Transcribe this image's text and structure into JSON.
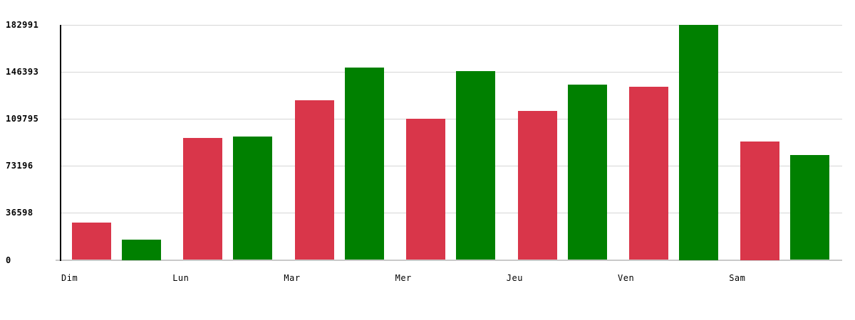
{
  "chart_data": {
    "type": "bar",
    "title": "",
    "xlabel": "",
    "ylabel": "",
    "categories": [
      "Dim",
      "Lun",
      "Mar",
      "Mer",
      "Jeu",
      "Ven",
      "Sam"
    ],
    "series": [
      {
        "name": "red",
        "color": "#d9364a",
        "values": [
          28900,
          94900,
          124500,
          110000,
          115900,
          134900,
          92200
        ]
      },
      {
        "name": "green",
        "color": "#008000",
        "values": [
          15800,
          96000,
          150000,
          147200,
          136700,
          182991,
          81800
        ]
      }
    ],
    "ylim": [
      0,
      182991
    ],
    "yticks": [
      0,
      36598,
      73196,
      109795,
      146393,
      182991
    ],
    "grid": true,
    "legend": "none",
    "axis_color": "#000000",
    "gridline_color": "#d6d6d6",
    "background_color": "#ffffff"
  }
}
